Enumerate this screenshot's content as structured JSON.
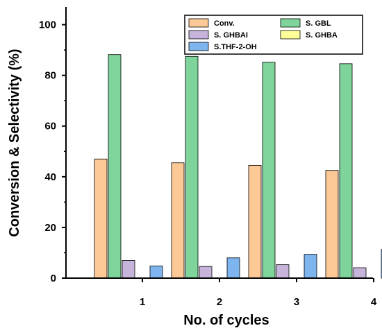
{
  "chart_data": {
    "type": "bar",
    "xlabel": "No. of cycles",
    "ylabel": "Conversion  & Selectivity (%)",
    "categories": [
      "1",
      "2",
      "3",
      "4"
    ],
    "ylim": [
      0,
      107
    ],
    "yticks": [
      0,
      20,
      40,
      60,
      80,
      100
    ],
    "grid": false,
    "legend_position": "top-right",
    "series": [
      {
        "name": "Conv.",
        "color": "#FCC896",
        "values": [
          47.0,
          45.5,
          44.5,
          42.5
        ]
      },
      {
        "name": "S. GBL",
        "color": "#7ED49A",
        "values": [
          88.2,
          87.5,
          85.2,
          84.6
        ]
      },
      {
        "name": "S. GHBAI",
        "color": "#C7B4DB",
        "values": [
          7.0,
          4.6,
          5.3,
          4.1
        ]
      },
      {
        "name": "S. GHBA",
        "color": "#FFFF99",
        "values": [
          0,
          0,
          0,
          0
        ]
      },
      {
        "name": "S.THF-2-OH",
        "color": "#7FB5EE",
        "values": [
          4.8,
          8.0,
          9.4,
          11.3
        ]
      }
    ]
  }
}
